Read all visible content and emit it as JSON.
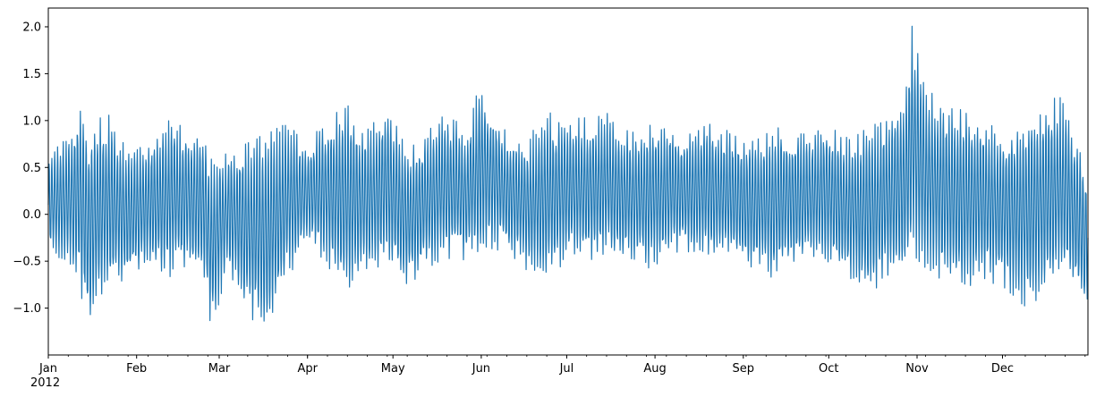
{
  "chart_data": {
    "type": "line",
    "title": "",
    "xlabel": "",
    "ylabel": "",
    "x_start": "2012-01-01",
    "x_end": "2012-12-31",
    "xlim": [
      "2012-01-01",
      "2012-12-31"
    ],
    "ylim": [
      -1.5,
      2.2
    ],
    "grid": false,
    "legend": "none",
    "line_color": "#1f77b4",
    "x_ticks": [
      {
        "label": "Jan",
        "date": "2012-01-01"
      },
      {
        "label": "Feb",
        "date": "2012-02-01"
      },
      {
        "label": "Mar",
        "date": "2012-03-01"
      },
      {
        "label": "Apr",
        "date": "2012-04-01"
      },
      {
        "label": "May",
        "date": "2012-05-01"
      },
      {
        "label": "Jun",
        "date": "2012-06-01"
      },
      {
        "label": "Jul",
        "date": "2012-07-01"
      },
      {
        "label": "Aug",
        "date": "2012-08-01"
      },
      {
        "label": "Sep",
        "date": "2012-09-01"
      },
      {
        "label": "Oct",
        "date": "2012-10-01"
      },
      {
        "label": "Nov",
        "date": "2012-11-01"
      },
      {
        "label": "Dec",
        "date": "2012-12-01"
      }
    ],
    "x_year_label": "2012",
    "y_ticks": [
      {
        "label": "2.0",
        "value": 2.0
      },
      {
        "label": "1.5",
        "value": 1.5
      },
      {
        "label": "1.0",
        "value": 1.0
      },
      {
        "label": "0.5",
        "value": 0.5
      },
      {
        "label": "0.0",
        "value": 0.0
      },
      {
        "label": "−0.5",
        "value": -0.5
      },
      {
        "label": "−1.0",
        "value": -1.0
      }
    ],
    "envelope": {
      "dates": [
        "2012-01-01",
        "2012-01-08",
        "2012-01-12",
        "2012-01-15",
        "2012-01-22",
        "2012-01-29",
        "2012-02-05",
        "2012-02-12",
        "2012-02-19",
        "2012-02-25",
        "2012-02-27",
        "2012-03-04",
        "2012-03-11",
        "2012-03-18",
        "2012-03-25",
        "2012-04-01",
        "2012-04-08",
        "2012-04-15",
        "2012-04-22",
        "2012-04-29",
        "2012-05-06",
        "2012-05-13",
        "2012-05-20",
        "2012-05-27",
        "2012-06-01",
        "2012-06-03",
        "2012-06-10",
        "2012-06-17",
        "2012-06-24",
        "2012-07-01",
        "2012-07-08",
        "2012-07-15",
        "2012-07-22",
        "2012-07-29",
        "2012-08-05",
        "2012-08-12",
        "2012-08-19",
        "2012-08-26",
        "2012-09-02",
        "2012-09-09",
        "2012-09-16",
        "2012-09-23",
        "2012-09-30",
        "2012-10-07",
        "2012-10-14",
        "2012-10-21",
        "2012-10-28",
        "2012-10-30",
        "2012-11-04",
        "2012-11-11",
        "2012-11-18",
        "2012-11-25",
        "2012-12-02",
        "2012-12-09",
        "2012-12-16",
        "2012-12-23",
        "2012-12-30"
      ],
      "max": [
        0.6,
        0.9,
        1.2,
        0.95,
        1.1,
        0.7,
        0.8,
        1.0,
        1.0,
        0.9,
        0.6,
        0.7,
        0.8,
        0.9,
        1.0,
        0.75,
        1.1,
        1.2,
        0.9,
        1.2,
        0.7,
        0.9,
        1.1,
        0.9,
        1.5,
        1.3,
        0.9,
        0.8,
        1.1,
        1.0,
        1.05,
        1.1,
        0.9,
        0.95,
        1.0,
        0.85,
        1.0,
        0.9,
        0.85,
        0.9,
        0.95,
        0.85,
        1.0,
        0.85,
        0.95,
        1.0,
        1.3,
        2.05,
        1.35,
        1.2,
        1.1,
        1.0,
        0.9,
        1.0,
        1.2,
        1.3,
        0.5
      ],
      "min": [
        -0.4,
        -0.6,
        -0.8,
        -1.2,
        -0.8,
        -0.7,
        -0.6,
        -0.7,
        -0.6,
        -0.7,
        -1.3,
        -0.6,
        -1.1,
        -1.3,
        -0.7,
        -0.3,
        -0.6,
        -0.9,
        -0.6,
        -0.55,
        -0.8,
        -0.6,
        -0.5,
        -0.5,
        -0.45,
        -0.4,
        -0.4,
        -0.6,
        -0.7,
        -0.5,
        -0.5,
        -0.45,
        -0.5,
        -0.6,
        -0.5,
        -0.4,
        -0.45,
        -0.5,
        -0.6,
        -0.7,
        -0.6,
        -0.5,
        -0.5,
        -0.7,
        -0.9,
        -0.7,
        -0.65,
        -0.4,
        -0.6,
        -0.75,
        -0.8,
        -0.7,
        -0.8,
        -1.0,
        -0.85,
        -0.7,
        -1.0
      ]
    }
  }
}
